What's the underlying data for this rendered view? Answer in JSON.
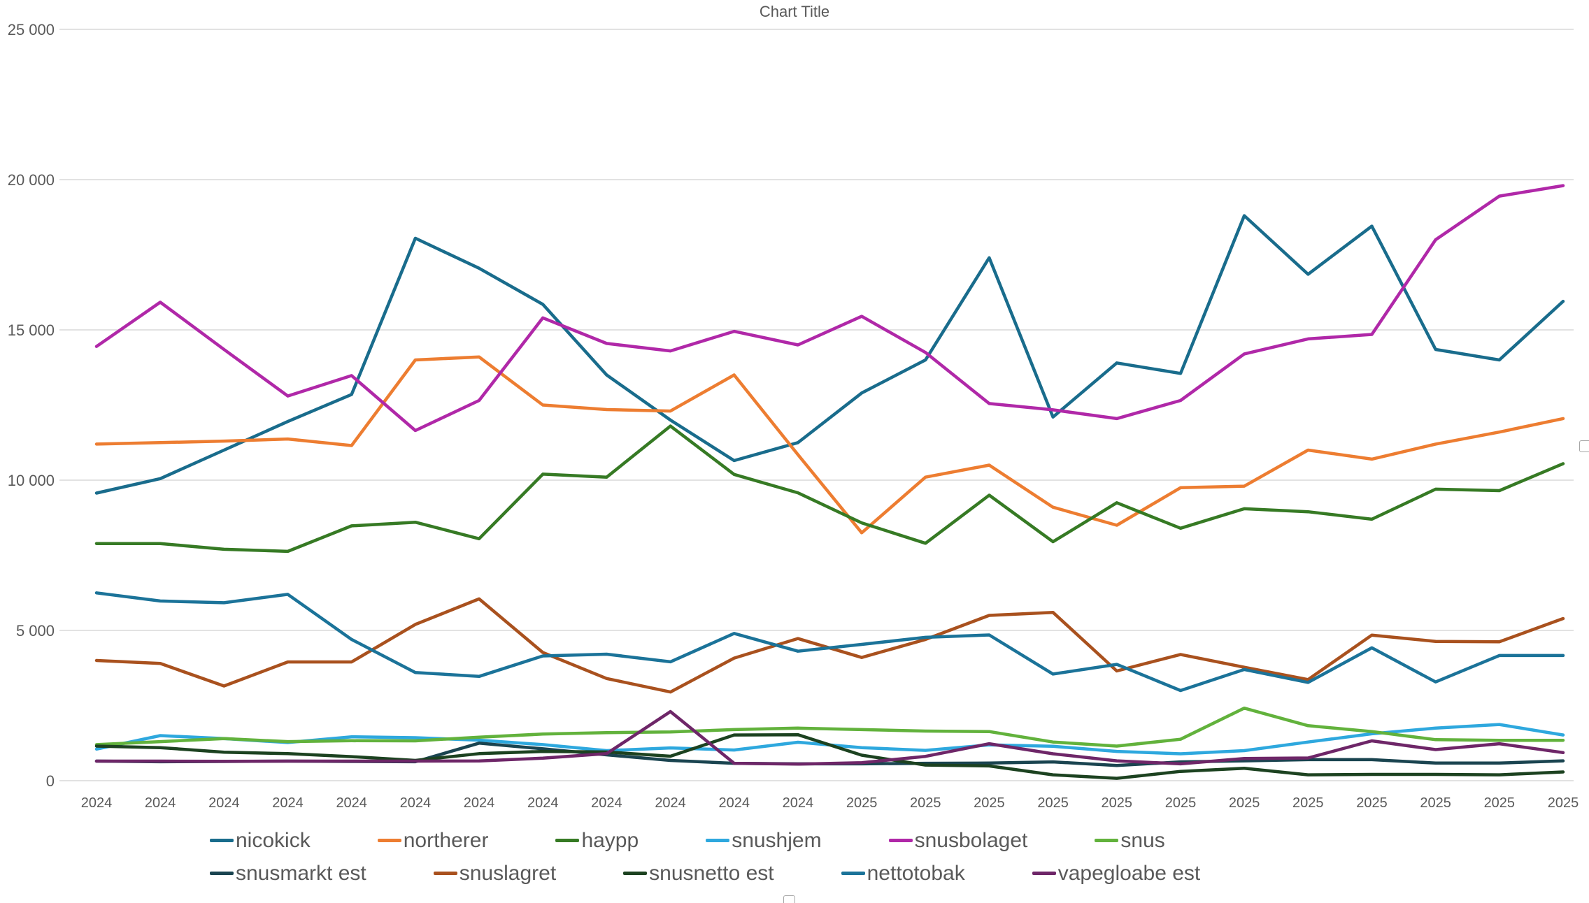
{
  "title": "Chart Title",
  "chart_data": {
    "type": "line",
    "title": "Chart Title",
    "xlabel": "",
    "ylabel": "",
    "ylim": [
      0,
      25000
    ],
    "y_tick_interval": 5000,
    "y_tick_labels": [
      "0",
      "5 000",
      "10 000",
      "15 000",
      "20 000",
      "25 000"
    ],
    "grid": true,
    "legend_position": "bottom",
    "x": [
      "2024",
      "2024",
      "2024",
      "2024",
      "2024",
      "2024",
      "2024",
      "2024",
      "2024",
      "2024",
      "2024",
      "2024",
      "2025",
      "2025",
      "2025",
      "2025",
      "2025",
      "2025",
      "2025",
      "2025",
      "2025",
      "2025",
      "2025",
      "2025"
    ],
    "series": [
      {
        "name": "nicokick",
        "color": "#196C8C",
        "values": [
          9570,
          10050,
          11000,
          11950,
          12850,
          18050,
          17050,
          15850,
          13500,
          12000,
          10650,
          11250,
          12900,
          14000,
          17400,
          12100,
          13900,
          13550,
          18800,
          16850,
          18450,
          14350,
          14000,
          15950
        ]
      },
      {
        "name": "northerer",
        "color": "#ED7D31",
        "values": [
          11200,
          11250,
          11300,
          11370,
          11150,
          14000,
          14100,
          12500,
          12350,
          12300,
          13500,
          10850,
          8250,
          10100,
          10500,
          9100,
          8500,
          9750,
          9800,
          11000,
          10700,
          11200,
          11600,
          12050
        ]
      },
      {
        "name": "haypp",
        "color": "#367A24",
        "values": [
          7890,
          7890,
          7700,
          7630,
          8480,
          8600,
          8050,
          10200,
          10100,
          11800,
          10190,
          9580,
          8580,
          7900,
          9500,
          7950,
          9250,
          8400,
          9050,
          8950,
          8700,
          9700,
          9650,
          10550
        ]
      },
      {
        "name": "snushjem",
        "color": "#2EA8DE",
        "values": [
          1050,
          1500,
          1400,
          1270,
          1460,
          1430,
          1350,
          1200,
          1000,
          1090,
          1020,
          1280,
          1100,
          1010,
          1190,
          1145,
          975,
          895,
          1000,
          1285,
          1560,
          1750,
          1870,
          1520
        ]
      },
      {
        "name": "snusbolaget",
        "color": "#B028A8",
        "values": [
          14450,
          15920,
          14350,
          12800,
          13480,
          11650,
          12650,
          15400,
          14550,
          14300,
          14950,
          14500,
          15450,
          14250,
          12550,
          12340,
          12050,
          12650,
          14200,
          14700,
          14850,
          18000,
          19450,
          19800
        ]
      },
      {
        "name": "snus",
        "color": "#62B23C",
        "values": [
          1200,
          1300,
          1400,
          1300,
          1330,
          1325,
          1450,
          1550,
          1600,
          1620,
          1700,
          1750,
          1700,
          1650,
          1635,
          1285,
          1150,
          1380,
          2415,
          1830,
          1635,
          1365,
          1345,
          1345
        ]
      },
      {
        "name": "snusmarkt est",
        "color": "#1A4450",
        "values": [
          650,
          630,
          640,
          650,
          640,
          630,
          1250,
          1060,
          860,
          675,
          580,
          560,
          560,
          580,
          585,
          625,
          505,
          625,
          660,
          700,
          700,
          585,
          585,
          660
        ]
      },
      {
        "name": "snuslagret",
        "color": "#A9511E",
        "values": [
          4000,
          3900,
          3150,
          3950,
          3950,
          5200,
          6050,
          4265,
          3400,
          2950,
          4080,
          4730,
          4100,
          4700,
          5500,
          5600,
          3650,
          4200,
          3775,
          3365,
          4845,
          4635,
          4620,
          5395
        ]
      },
      {
        "name": "snusnetto est",
        "color": "#1C4220",
        "values": [
          1150,
          1100,
          950,
          900,
          800,
          675,
          900,
          975,
          955,
          815,
          1520,
          1530,
          850,
          520,
          490,
          195,
          80,
          310,
          415,
          195,
          210,
          210,
          195,
          290
        ]
      },
      {
        "name": "nettotobak",
        "color": "#1B7399",
        "values": [
          6250,
          5980,
          5920,
          6200,
          4700,
          3600,
          3470,
          4150,
          4210,
          3955,
          4900,
          4310,
          4535,
          4770,
          4850,
          3550,
          3870,
          3000,
          3700,
          3270,
          4420,
          3285,
          4165,
          4165
        ]
      },
      {
        "name": "vapegloabe est",
        "color": "#6E2668",
        "values": [
          650,
          650,
          645,
          650,
          650,
          650,
          655,
          750,
          900,
          2300,
          580,
          550,
          600,
          810,
          1230,
          895,
          660,
          560,
          740,
          755,
          1325,
          1035,
          1230,
          935
        ]
      }
    ]
  },
  "style": {
    "gridline_color": "#D9D9D9",
    "axis_text_color": "#595959",
    "title_color": "#595959",
    "legend_text_color": "#595959"
  }
}
